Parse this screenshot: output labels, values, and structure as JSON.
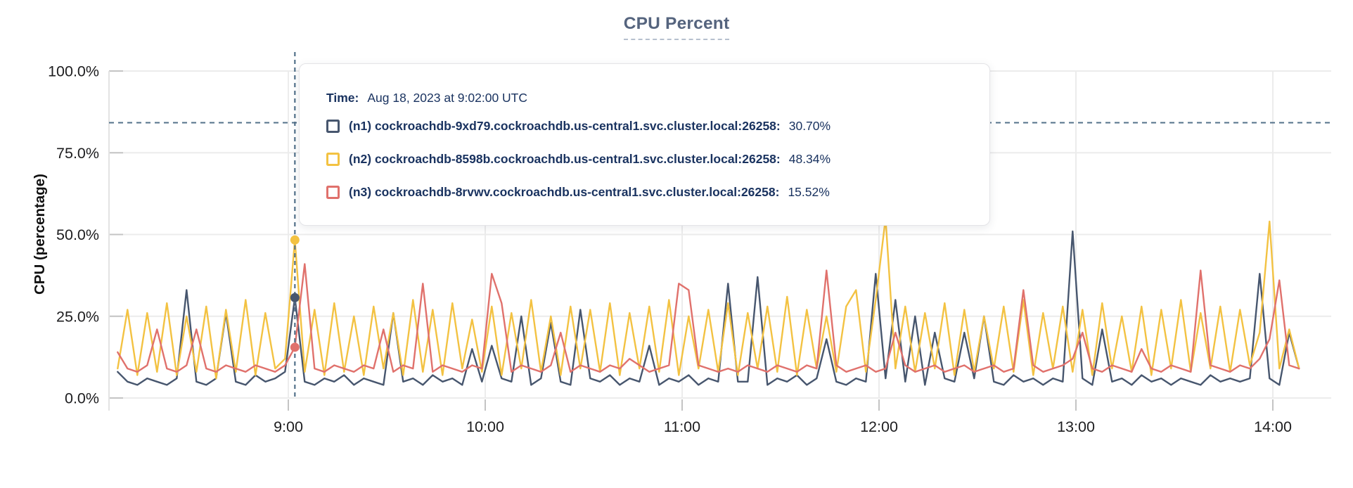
{
  "title": "CPU Percent",
  "tooltip": {
    "time_label": "Time:",
    "time_value": "Aug 18, 2023 at 9:02:00 UTC",
    "rows": [
      {
        "name": "(n1) cockroachdb-9xd79.cockroachdb.us-central1.svc.cluster.local:26258:",
        "value": "30.70%"
      },
      {
        "name": "(n2) cockroachdb-8598b.cockroachdb.us-central1.svc.cluster.local:26258:",
        "value": "48.34%"
      },
      {
        "name": "(n3) cockroachdb-8rvwv.cockroachdb.us-central1.svc.cluster.local:26258:",
        "value": "15.52%"
      }
    ]
  },
  "chart_data": {
    "type": "line",
    "title": "CPU Percent",
    "xlabel": "",
    "ylabel": "CPU (percentage)",
    "ylim": [
      0,
      100
    ],
    "grid": true,
    "legend_position": "tooltip",
    "y_ticks": [
      {
        "value": 0,
        "label": "0.0%"
      },
      {
        "value": 25,
        "label": "25.0%"
      },
      {
        "value": 50,
        "label": "50.0%"
      },
      {
        "value": 75,
        "label": "75.0%"
      },
      {
        "value": 100,
        "label": "100.0%"
      }
    ],
    "x_ticks": [
      {
        "minute": 52,
        "label": "9:00"
      },
      {
        "minute": 112,
        "label": "10:00"
      },
      {
        "minute": 172,
        "label": "11:00"
      },
      {
        "minute": 232,
        "label": "12:00"
      },
      {
        "minute": 292,
        "label": "13:00"
      },
      {
        "minute": 352,
        "label": "14:00"
      }
    ],
    "x_start_minute": 0,
    "x_step_minutes": 3,
    "threshold_line_value": 84.2,
    "hover": {
      "minute": 54,
      "time_label": "Aug 18, 2023 at 9:02:00 UTC",
      "values": [
        30.7,
        48.34,
        15.52
      ]
    },
    "colors": {
      "grid": "#ececec",
      "tick": "#c4c4c4",
      "axis_text": "#1d1d1f",
      "threshold": "#53718a",
      "hover_line": "#53718a",
      "title": "#55647e",
      "tooltip_text": "#1a3360"
    },
    "series": [
      {
        "name": "(n1) cockroachdb-9xd79.cockroachdb.us-central1.svc.cluster.local:26258",
        "color": "#47566e",
        "values": [
          8,
          5,
          4,
          6,
          5,
          4,
          6,
          33,
          5,
          4,
          6,
          26,
          5,
          4,
          7,
          5,
          6,
          8,
          30.7,
          5,
          4,
          6,
          5,
          7,
          4,
          6,
          5,
          4,
          26,
          5,
          6,
          4,
          7,
          5,
          6,
          4,
          15,
          5,
          16,
          6,
          5,
          25,
          4,
          6,
          23,
          5,
          4,
          27,
          6,
          5,
          7,
          4,
          6,
          5,
          16,
          4,
          6,
          5,
          7,
          4,
          6,
          5,
          35,
          5,
          5,
          37,
          4,
          6,
          5,
          7,
          4,
          6,
          18,
          5,
          4,
          6,
          5,
          38,
          6,
          30,
          5,
          25,
          4,
          20,
          6,
          5,
          20,
          6,
          25,
          5,
          4,
          7,
          5,
          6,
          4,
          6,
          5,
          51,
          6,
          4,
          21,
          5,
          6,
          4,
          7,
          5,
          6,
          4,
          6,
          5,
          4,
          7,
          5,
          6,
          5,
          6,
          38,
          6,
          4,
          20,
          9
        ]
      },
      {
        "name": "(n2) cockroachdb-8598b.cockroachdb.us-central1.svc.cluster.local:26258",
        "color": "#f3c242",
        "values": [
          9,
          27,
          7,
          26,
          8,
          29,
          7,
          25,
          8,
          28,
          6,
          27,
          8,
          30,
          7,
          26,
          9,
          12,
          48.34,
          8,
          27,
          7,
          29,
          8,
          25,
          7,
          28,
          9,
          26,
          7,
          30,
          8,
          27,
          7,
          29,
          9,
          24,
          8,
          28,
          7,
          26,
          9,
          30,
          8,
          25,
          7,
          28,
          9,
          27,
          8,
          29,
          7,
          26,
          9,
          28,
          8,
          30,
          7,
          25,
          9,
          27,
          8,
          29,
          7,
          26,
          9,
          28,
          8,
          31,
          7,
          27,
          9,
          25,
          8,
          28,
          33,
          8,
          30,
          55,
          9,
          28,
          8,
          26,
          9,
          29,
          7,
          27,
          8,
          25,
          9,
          28,
          8,
          30,
          7,
          26,
          9,
          28,
          8,
          27,
          7,
          29,
          9,
          25,
          8,
          28,
          7,
          27,
          9,
          30,
          8,
          26,
          9,
          28,
          8,
          27,
          10,
          20,
          54,
          9,
          21,
          9
        ]
      },
      {
        "name": "(n3) cockroachdb-8rvwv.cockroachdb.us-central1.svc.cluster.local:26258",
        "color": "#e0716c",
        "values": [
          14,
          9,
          8,
          10,
          21,
          9,
          8,
          10,
          21,
          9,
          8,
          10,
          9,
          8,
          10,
          9,
          8,
          10,
          15.52,
          41,
          9,
          8,
          10,
          9,
          8,
          10,
          9,
          21,
          8,
          10,
          9,
          35,
          8,
          10,
          9,
          8,
          10,
          9,
          38,
          29,
          8,
          10,
          9,
          8,
          10,
          20,
          8,
          10,
          9,
          8,
          10,
          9,
          12,
          10,
          8,
          9,
          10,
          35,
          33,
          10,
          9,
          8,
          9,
          8,
          10,
          9,
          8,
          10,
          9,
          8,
          10,
          9,
          39,
          10,
          8,
          9,
          10,
          8,
          9,
          20,
          10,
          8,
          9,
          10,
          8,
          9,
          10,
          8,
          9,
          10,
          8,
          9,
          33,
          10,
          8,
          9,
          10,
          12,
          20,
          9,
          8,
          10,
          9,
          8,
          15,
          9,
          8,
          10,
          9,
          8,
          39,
          10,
          9,
          8,
          10,
          9,
          12,
          18,
          36,
          10,
          9
        ]
      }
    ]
  }
}
